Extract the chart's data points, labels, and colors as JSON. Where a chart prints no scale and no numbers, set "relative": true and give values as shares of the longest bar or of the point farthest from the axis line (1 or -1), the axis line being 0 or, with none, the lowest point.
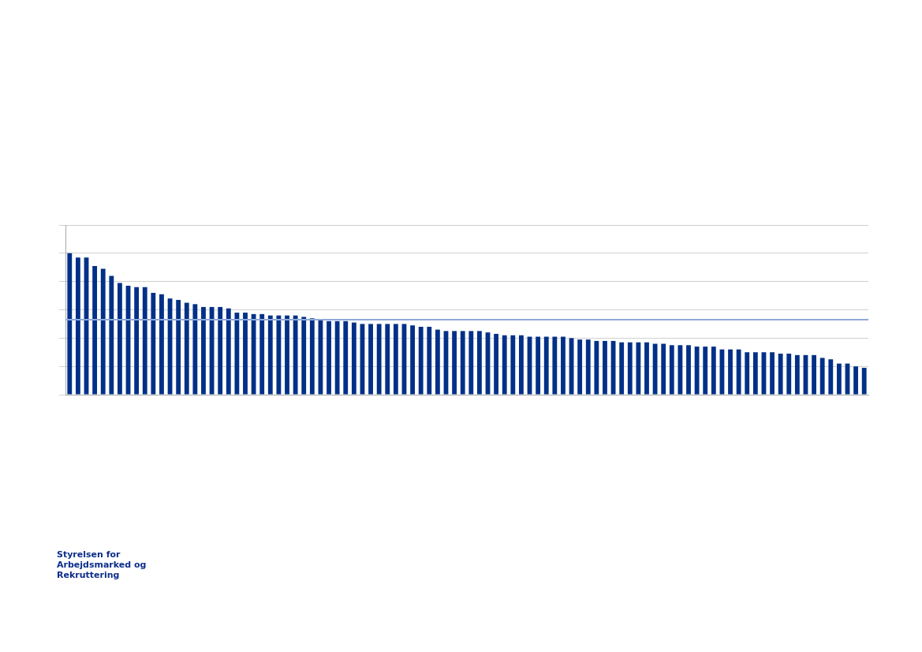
{
  "chart_data": {
    "type": "bar",
    "relative": true,
    "grid": "y",
    "categories": [
      null,
      null,
      null,
      null,
      null,
      null,
      null,
      null,
      null,
      null,
      null,
      null,
      null,
      null,
      null,
      null,
      null,
      null,
      null,
      null,
      null,
      null,
      null,
      null,
      null,
      null,
      null,
      null,
      null,
      null,
      null,
      null,
      null,
      null,
      null,
      null,
      null,
      null,
      null,
      null,
      null,
      null,
      null,
      null,
      null,
      null,
      null,
      null,
      null,
      null,
      null,
      null,
      null,
      null,
      null,
      null,
      null,
      null,
      null,
      null,
      null,
      null,
      null,
      null,
      null,
      null,
      null,
      null,
      null,
      null,
      null,
      null,
      null,
      null,
      null,
      null,
      null,
      null,
      null,
      null,
      null,
      null,
      null,
      null,
      null,
      null,
      null,
      null,
      null,
      null,
      null,
      null,
      null,
      null,
      null,
      null
    ],
    "values": [
      1,
      0.97,
      0.97,
      0.91,
      0.89,
      0.84,
      0.79,
      0.77,
      0.76,
      0.76,
      0.72,
      0.71,
      0.68,
      0.67,
      0.65,
      0.64,
      0.62,
      0.62,
      0.62,
      0.61,
      0.58,
      0.58,
      0.57,
      0.57,
      0.56,
      0.56,
      0.56,
      0.56,
      0.55,
      0.54,
      0.53,
      0.52,
      0.52,
      0.52,
      0.51,
      0.5,
      0.5,
      0.5,
      0.5,
      0.5,
      0.5,
      0.49,
      0.48,
      0.48,
      0.46,
      0.45,
      0.45,
      0.45,
      0.45,
      0.45,
      0.44,
      0.43,
      0.42,
      0.42,
      0.42,
      0.41,
      0.41,
      0.41,
      0.41,
      0.41,
      0.4,
      0.39,
      0.39,
      0.38,
      0.38,
      0.38,
      0.37,
      0.37,
      0.37,
      0.37,
      0.36,
      0.36,
      0.35,
      0.35,
      0.35,
      0.34,
      0.34,
      0.34,
      0.32,
      0.32,
      0.32,
      0.3,
      0.3,
      0.3,
      0.3,
      0.29,
      0.29,
      0.28,
      0.28,
      0.28,
      0.26,
      0.25,
      0.22,
      0.22,
      0.2,
      0.19
    ],
    "color": "#003087",
    "ref_lines": [
      {
        "axis": "y",
        "value": 0.53,
        "color": "#8eaadb"
      }
    ],
    "annotations": [
      "Styrelsen for Arbejdsmarked og Rekruttering"
    ]
  }
}
